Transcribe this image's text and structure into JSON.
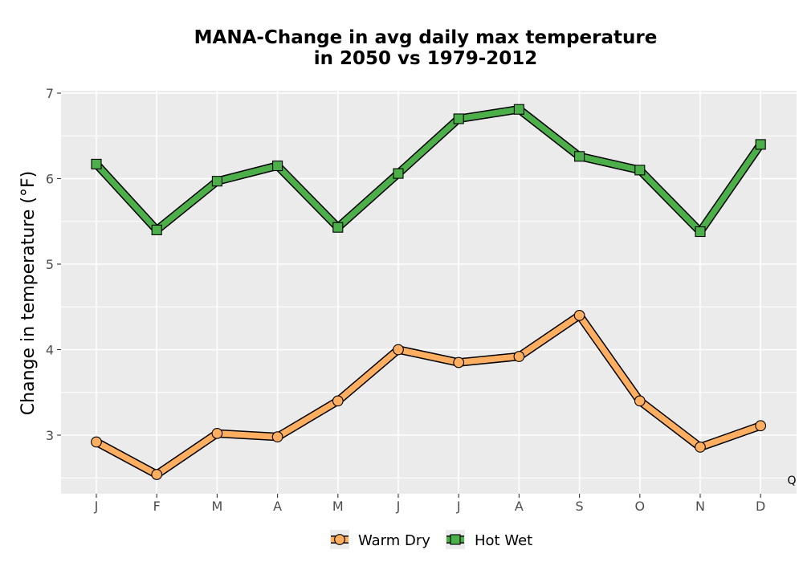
{
  "chart_data": {
    "type": "line",
    "title_line1": "MANA-Change in avg daily max temperature",
    "title_line2": "in 2050 vs 1979-2012",
    "xlabel": "",
    "ylabel": "Change in temperature (°F)",
    "categories": [
      "J",
      "F",
      "M",
      "A",
      "M",
      "J",
      "J",
      "A",
      "S",
      "O",
      "N",
      "D"
    ],
    "ylim": [
      2.3,
      7.0
    ],
    "yticks": [
      3,
      4,
      5,
      6,
      7
    ],
    "grid": true,
    "legend_position": "bottom",
    "series": [
      {
        "name": "Warm Dry",
        "color": "#FDAE61",
        "marker": "circle",
        "values": [
          2.92,
          2.54,
          3.02,
          2.98,
          3.4,
          4.0,
          3.85,
          3.92,
          4.4,
          3.4,
          2.86,
          3.11
        ]
      },
      {
        "name": "Hot Wet",
        "color": "#4DAF4A",
        "marker": "square",
        "values": [
          6.17,
          5.4,
          5.97,
          6.15,
          5.43,
          6.06,
          6.7,
          6.81,
          6.26,
          6.1,
          5.38,
          6.4
        ]
      }
    ],
    "annotation": "Q"
  }
}
